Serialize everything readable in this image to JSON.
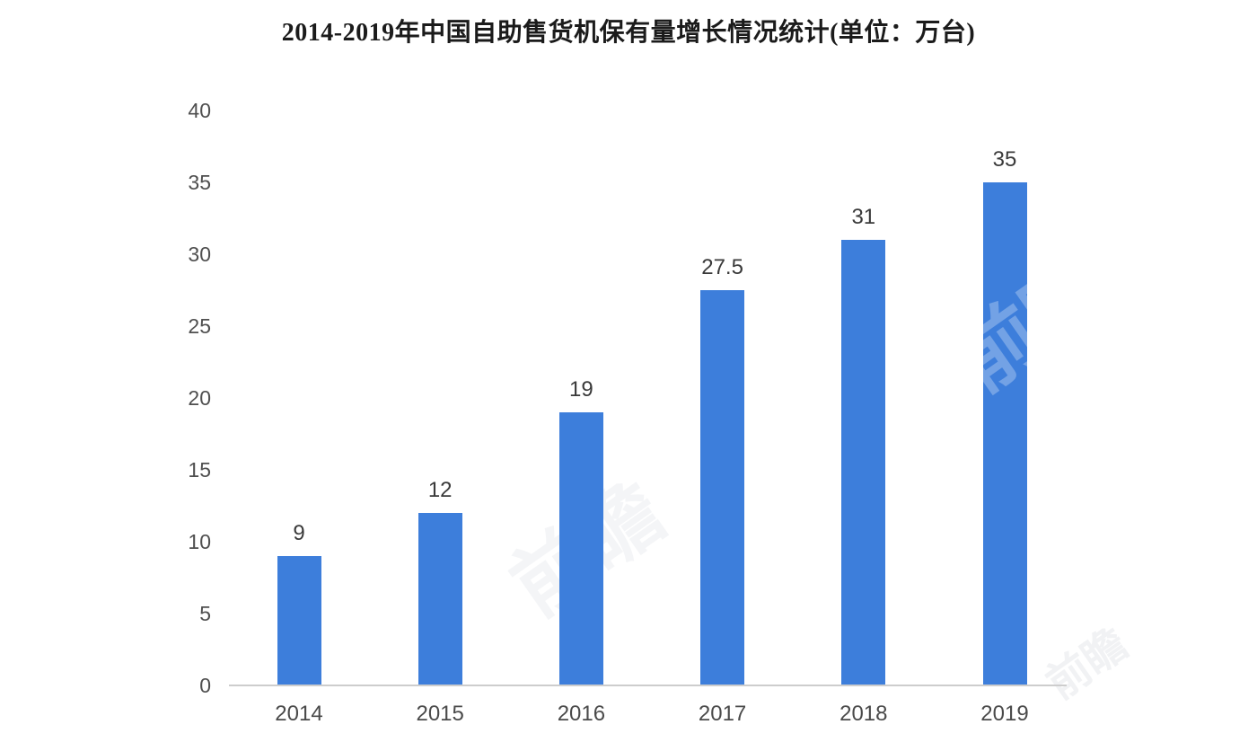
{
  "chart_data": {
    "type": "bar",
    "title": "2014-2019年中国自助售货机保有量增长情况统计(单位：万台)",
    "categories": [
      "2014",
      "2015",
      "2016",
      "2017",
      "2018",
      "2019"
    ],
    "values": [
      9,
      12,
      19,
      27.5,
      31,
      35
    ],
    "value_labels": [
      "9",
      "12",
      "19",
      "27.5",
      "31",
      "35"
    ],
    "xlabel": "",
    "ylabel": "",
    "ylim": [
      0,
      40
    ],
    "yticks": [
      0,
      5,
      10,
      15,
      20,
      25,
      30,
      35,
      40
    ],
    "grid": false,
    "legend_position": "none",
    "bar_color": "#3d7edb",
    "axis_line_color": "#cdcdcd"
  },
  "watermark": {
    "text": "前瞻"
  }
}
